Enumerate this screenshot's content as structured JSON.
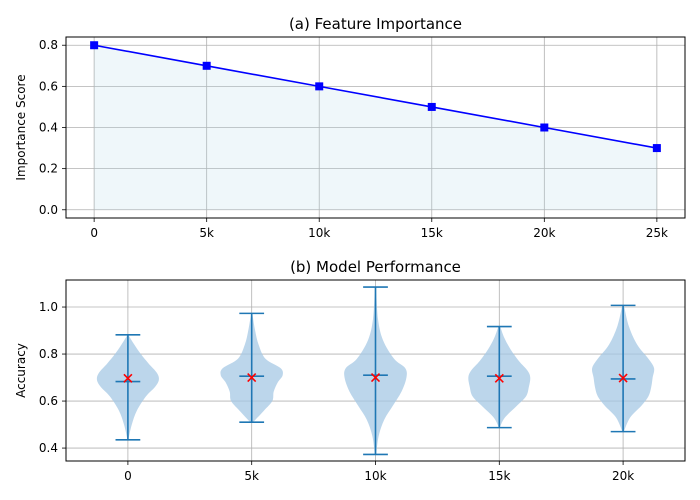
{
  "chart_data": [
    {
      "type": "line",
      "title": "(a) Feature Importance",
      "xlabel": "",
      "ylabel": "Importance Score",
      "x": [
        0,
        5000,
        10000,
        15000,
        20000,
        25000
      ],
      "x_tick_labels": [
        "0",
        "5k",
        "10k",
        "15k",
        "20k",
        "25k"
      ],
      "y_tick_labels": [
        "0.0",
        "0.2",
        "0.4",
        "0.6",
        "0.8"
      ],
      "y_ticks": [
        0.0,
        0.2,
        0.4,
        0.6,
        0.8
      ],
      "xlim": [
        -1250,
        26250
      ],
      "ylim": [
        -0.04,
        0.84
      ],
      "grid": true,
      "series": [
        {
          "values": [
            0.8,
            0.7,
            0.6,
            0.5,
            0.4,
            0.3
          ],
          "color": "#0000ff",
          "marker": "square",
          "fill_color": "#add8e6"
        }
      ]
    },
    {
      "type": "violin",
      "title": "(b) Model Performance",
      "xlabel": "",
      "ylabel": "Accuracy",
      "categories": [
        "0",
        "5k",
        "10k",
        "15k",
        "20k"
      ],
      "y_tick_labels": [
        "0.4",
        "0.6",
        "0.8",
        "1.0"
      ],
      "y_ticks": [
        0.4,
        0.6,
        0.8,
        1.0
      ],
      "ylim": [
        0.345,
        1.115
      ],
      "grid": true,
      "body_color": "#a6c8e4",
      "line_color": "#1f77b4",
      "mean_marker_color": "#ff0000",
      "violins": [
        {
          "min": 0.435,
          "max": 0.882,
          "median": 0.683,
          "mean": 0.697,
          "density_y": [
            0.44,
            0.5,
            0.56,
            0.62,
            0.66,
            0.69,
            0.72,
            0.76,
            0.8,
            0.84,
            0.88
          ],
          "density_w": [
            0.01,
            0.06,
            0.14,
            0.28,
            0.42,
            0.48,
            0.45,
            0.32,
            0.2,
            0.1,
            0.01
          ]
        },
        {
          "min": 0.51,
          "max": 0.973,
          "median": 0.706,
          "mean": 0.7,
          "density_y": [
            0.51,
            0.56,
            0.6,
            0.64,
            0.68,
            0.71,
            0.74,
            0.78,
            0.84,
            0.9,
            0.97
          ],
          "density_w": [
            0.02,
            0.18,
            0.3,
            0.32,
            0.38,
            0.45,
            0.42,
            0.2,
            0.1,
            0.05,
            0.01
          ]
        },
        {
          "min": 0.373,
          "max": 1.085,
          "median": 0.71,
          "mean": 0.7,
          "density_y": [
            0.37,
            0.45,
            0.52,
            0.58,
            0.64,
            0.7,
            0.74,
            0.78,
            0.86,
            0.95,
            1.08
          ],
          "density_w": [
            0.01,
            0.05,
            0.14,
            0.28,
            0.42,
            0.5,
            0.48,
            0.3,
            0.12,
            0.04,
            0.01
          ]
        },
        {
          "min": 0.487,
          "max": 0.917,
          "median": 0.706,
          "mean": 0.697,
          "density_y": [
            0.49,
            0.53,
            0.58,
            0.62,
            0.66,
            0.7,
            0.73,
            0.77,
            0.82,
            0.87,
            0.92
          ],
          "density_w": [
            0.01,
            0.08,
            0.25,
            0.38,
            0.42,
            0.44,
            0.4,
            0.28,
            0.16,
            0.07,
            0.01
          ]
        },
        {
          "min": 0.47,
          "max": 1.007,
          "median": 0.694,
          "mean": 0.698,
          "density_y": [
            0.47,
            0.53,
            0.58,
            0.62,
            0.66,
            0.7,
            0.74,
            0.78,
            0.84,
            0.92,
            1.01
          ],
          "density_w": [
            0.01,
            0.1,
            0.26,
            0.36,
            0.4,
            0.42,
            0.44,
            0.36,
            0.2,
            0.08,
            0.01
          ]
        }
      ]
    }
  ]
}
